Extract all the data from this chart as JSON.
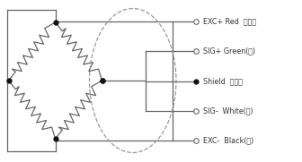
{
  "bg_color": "#ffffff",
  "line_color": "#666666",
  "dashed_color": "#999999",
  "dot_color": "#111111",
  "labels": [
    "EXC+ Red  （红）",
    "SIG+ Green(绿)",
    "Shield  屏蔽线",
    "SIG-  White(白)",
    "EXC-  Black(黑)"
  ],
  "figsize": [
    3.36,
    1.81
  ],
  "dpi": 100
}
